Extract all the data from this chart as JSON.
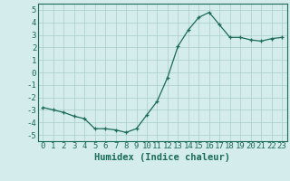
{
  "x": [
    0,
    1,
    2,
    3,
    4,
    5,
    6,
    7,
    8,
    9,
    10,
    11,
    12,
    13,
    14,
    15,
    16,
    17,
    18,
    19,
    20,
    21,
    22,
    23
  ],
  "y": [
    -2.8,
    -3.0,
    -3.2,
    -3.5,
    -3.7,
    -4.5,
    -4.5,
    -4.6,
    -4.8,
    -4.5,
    -3.4,
    -2.3,
    -0.4,
    2.1,
    3.4,
    4.4,
    4.8,
    3.8,
    2.8,
    2.8,
    2.6,
    2.5,
    2.7,
    2.8
  ],
  "xlabel": "Humidex (Indice chaleur)",
  "ylim": [
    -5.5,
    5.5
  ],
  "xlim": [
    -0.5,
    23.5
  ],
  "yticks": [
    -5,
    -4,
    -3,
    -2,
    -1,
    0,
    1,
    2,
    3,
    4,
    5
  ],
  "xticks": [
    0,
    1,
    2,
    3,
    4,
    5,
    6,
    7,
    8,
    9,
    10,
    11,
    12,
    13,
    14,
    15,
    16,
    17,
    18,
    19,
    20,
    21,
    22,
    23
  ],
  "line_color": "#1a6b5a",
  "marker_color": "#1a6b5a",
  "bg_color": "#d4ecec",
  "grid_color": "#aacccc",
  "xlabel_fontsize": 7.5,
  "tick_fontsize": 6.5
}
